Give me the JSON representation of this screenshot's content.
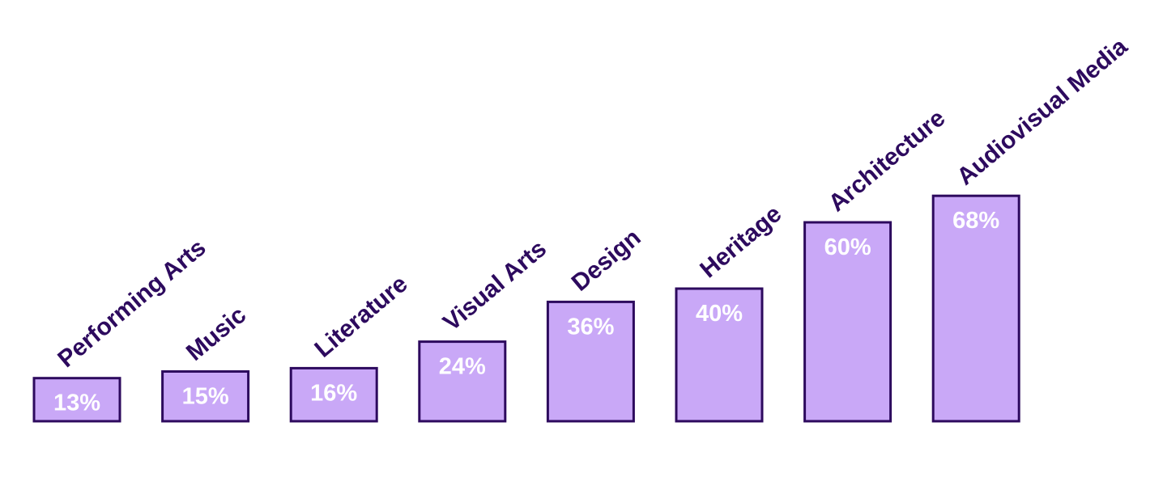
{
  "chart_data": {
    "type": "bar",
    "categories": [
      "Performing Arts",
      "Music",
      "Literature",
      "Visual Arts",
      "Design",
      "Heritage",
      "Architecture",
      "Audiovisual Media"
    ],
    "values": [
      13,
      15,
      16,
      24,
      36,
      40,
      60,
      68
    ],
    "value_labels": [
      "13%",
      "15%",
      "16%",
      "24%",
      "36%",
      "40%",
      "60%",
      "68%"
    ],
    "color": "#c9a8f7"
  }
}
